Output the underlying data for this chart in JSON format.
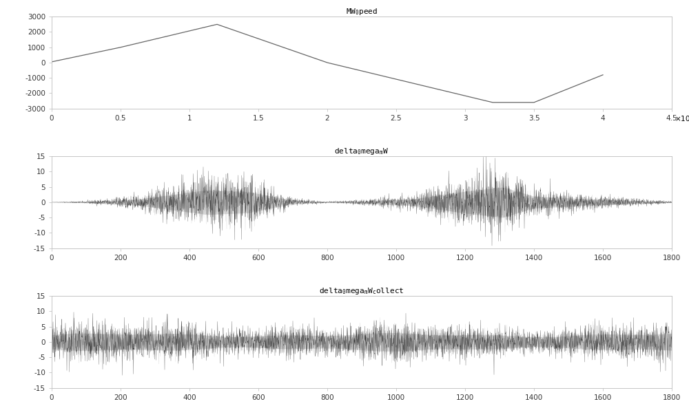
{
  "plot1_xpoints": [
    0,
    5000,
    12000,
    20000,
    32000,
    35000,
    40000
  ],
  "plot1_ypoints": [
    50,
    1000,
    2500,
    0,
    -2600,
    -2600,
    -800
  ],
  "plot1_xlim": [
    0,
    45000
  ],
  "plot1_ylim": [
    -3000,
    3000
  ],
  "plot1_xticks": [
    0,
    5000,
    10000,
    15000,
    20000,
    25000,
    30000,
    35000,
    40000,
    45000
  ],
  "plot1_xtick_labels": [
    "0",
    "0.5",
    "1",
    "1.5",
    "2",
    "2.5",
    "3",
    "3.5",
    "4",
    "4.5"
  ],
  "plot1_yticks": [
    -3000,
    -2000,
    -1000,
    0,
    1000,
    2000,
    3000
  ],
  "plot2_xlim": [
    0,
    1800
  ],
  "plot2_ylim": [
    -15,
    15
  ],
  "plot2_xticks": [
    0,
    200,
    400,
    600,
    800,
    1000,
    1200,
    1400,
    1600,
    1800
  ],
  "plot2_yticks": [
    -15,
    -10,
    -5,
    0,
    5,
    10,
    15
  ],
  "plot3_xlim": [
    0,
    1800
  ],
  "plot3_ylim": [
    -15,
    15
  ],
  "plot3_xticks": [
    0,
    200,
    400,
    600,
    800,
    1000,
    1200,
    1400,
    1600,
    1800
  ],
  "plot3_yticks": [
    -15,
    -10,
    -5,
    0,
    5,
    10,
    15
  ],
  "bg_color": "#ffffff",
  "noise_seed": 42,
  "n_samples": 3601
}
